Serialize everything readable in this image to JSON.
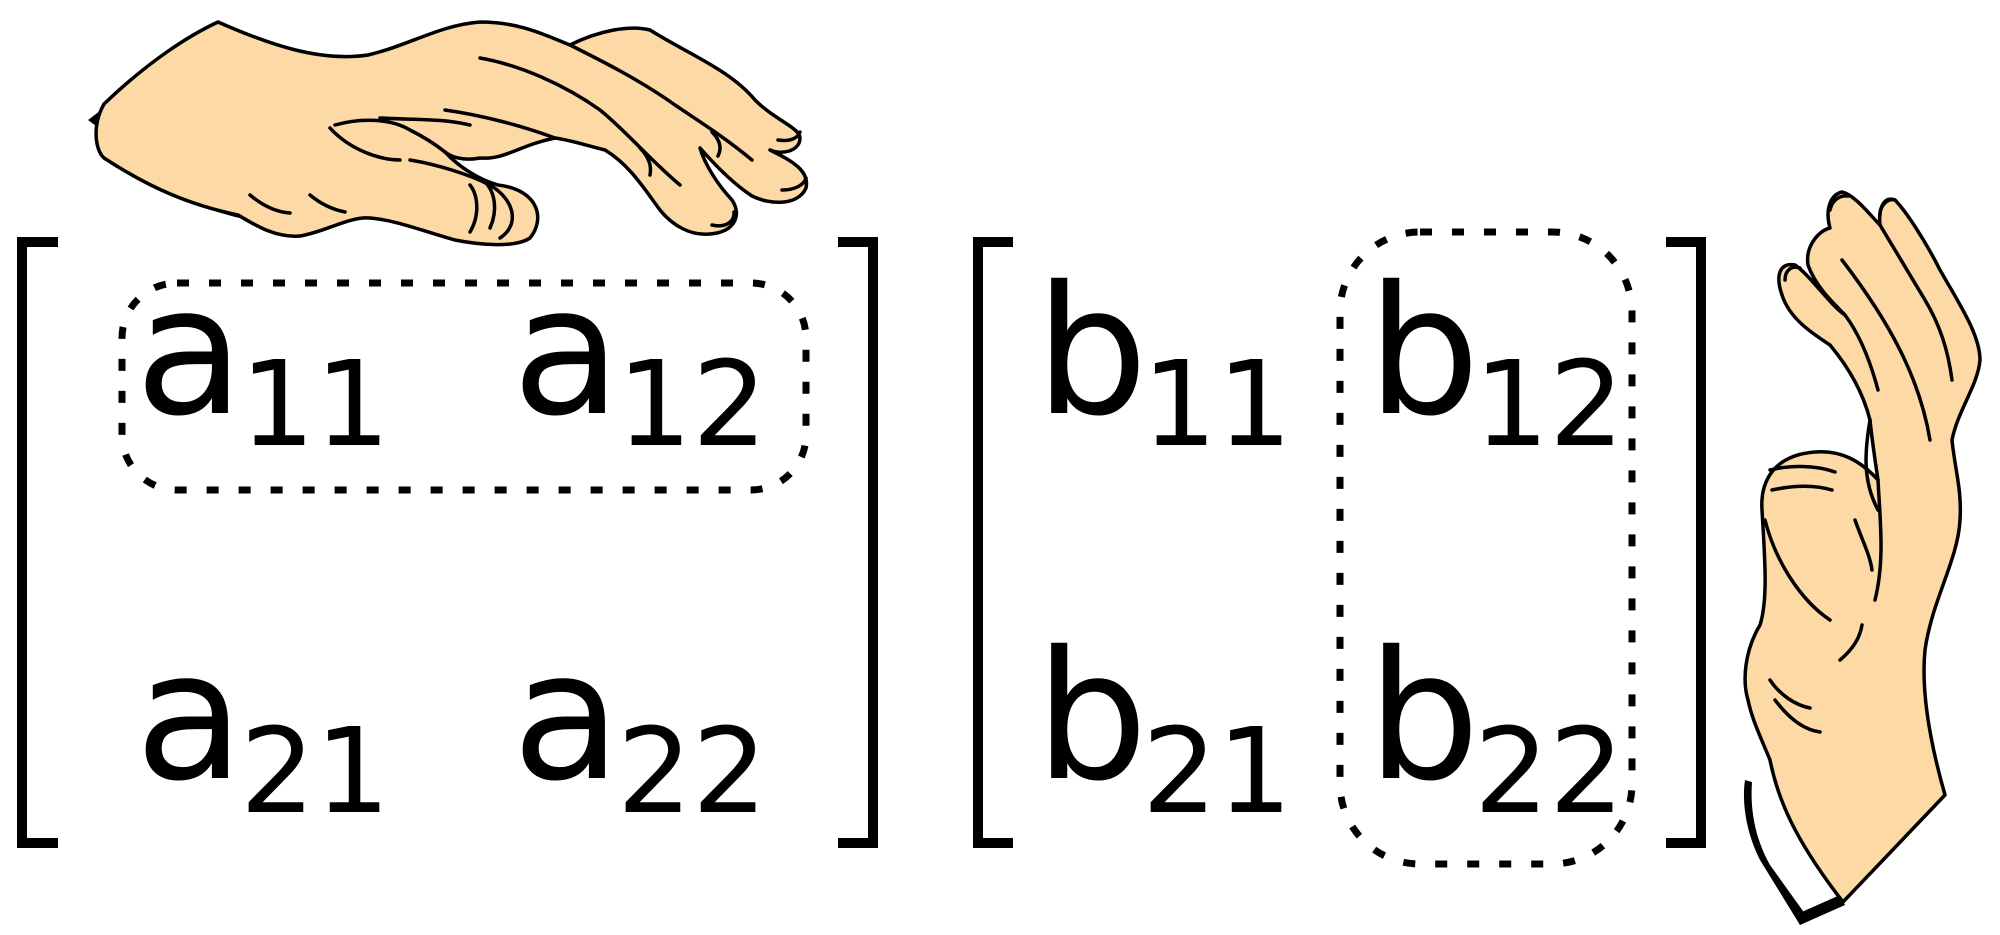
{
  "matrix_a": {
    "cells": [
      {
        "base": "a",
        "sub": "11"
      },
      {
        "base": "a",
        "sub": "12"
      },
      {
        "base": "a",
        "sub": "21"
      },
      {
        "base": "a",
        "sub": "22"
      }
    ],
    "highlighted": "first-row"
  },
  "matrix_b": {
    "cells": [
      {
        "base": "b",
        "sub": "11"
      },
      {
        "base": "b",
        "sub": "12"
      },
      {
        "base": "b",
        "sub": "21"
      },
      {
        "base": "b",
        "sub": "22"
      }
    ],
    "highlighted": "second-column"
  },
  "colors": {
    "skin": "#fdd9a6",
    "ink": "#000000",
    "background": "#ffffff"
  },
  "icons": [
    "horizontal-hand-icon",
    "vertical-hand-icon"
  ]
}
